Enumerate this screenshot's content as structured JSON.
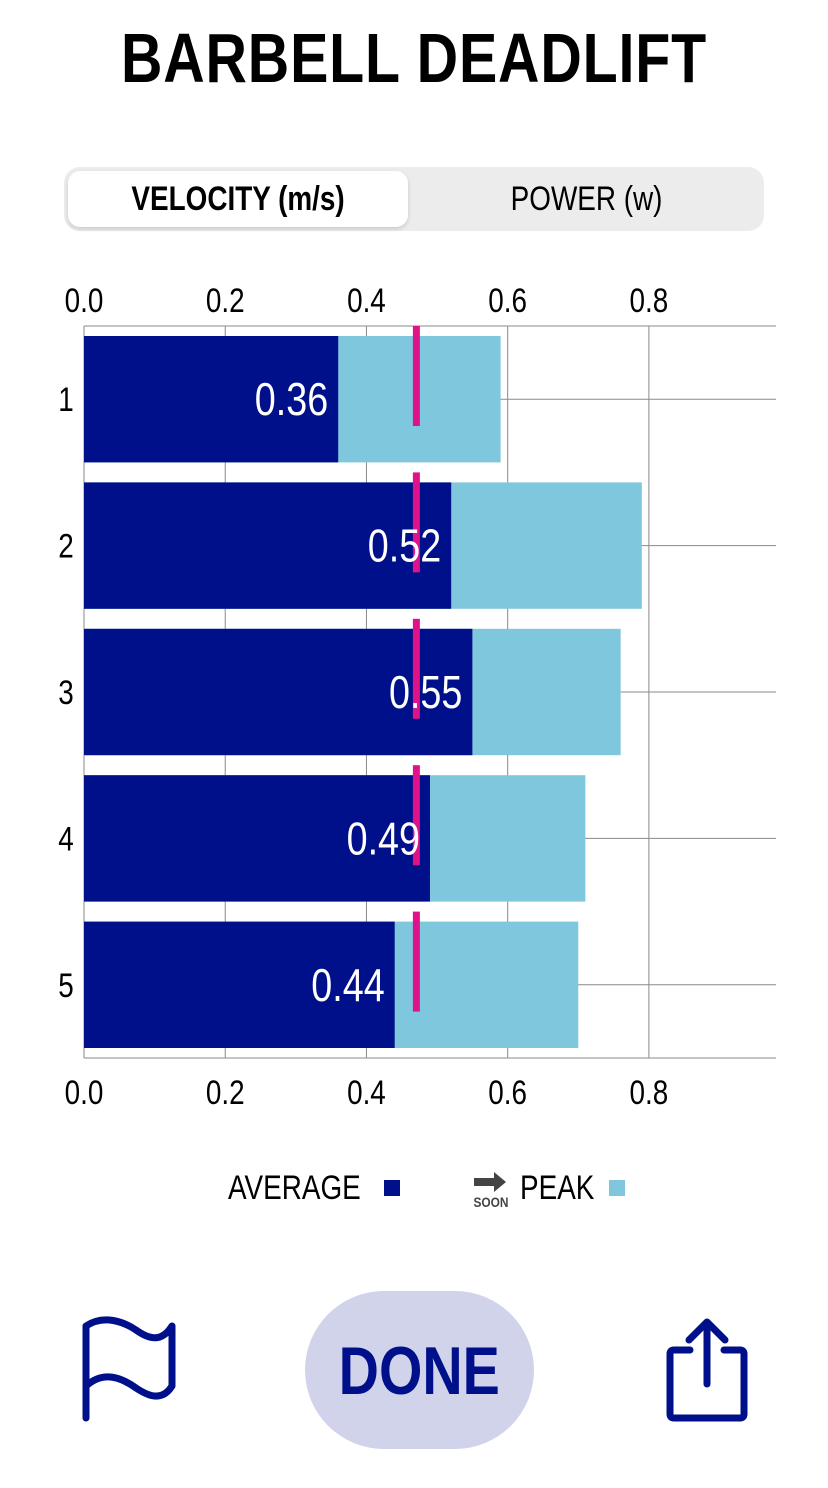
{
  "title": "BARBELL DEADLIFT",
  "tabs": {
    "velocity_label": "VELOCITY (m/s)",
    "power_label": "POWER (w)"
  },
  "colors": {
    "average": "#00108a",
    "peak": "#7fc7dd",
    "target_marker": "#e0128a",
    "done_background": "#d0d3ea",
    "done_text": "#00108a",
    "icon": "#00108a"
  },
  "chart_data": {
    "type": "bar",
    "orientation": "horizontal",
    "stacked_overlay": true,
    "categories": [
      "1",
      "2",
      "3",
      "4",
      "5"
    ],
    "series": [
      {
        "name": "AVERAGE",
        "values": [
          0.36,
          0.52,
          0.55,
          0.49,
          0.44
        ]
      },
      {
        "name": "PEAK",
        "values": [
          0.59,
          0.79,
          0.76,
          0.71,
          0.7
        ]
      }
    ],
    "data_labels": [
      "0.36",
      "0.52",
      "0.55",
      "0.49",
      "0.44"
    ],
    "target_value": 0.47,
    "xlim": [
      0.0,
      0.98
    ],
    "xticks": [
      "0.0",
      "0.2",
      "0.4",
      "0.6",
      "0.8"
    ],
    "xtick_values": [
      0.0,
      0.2,
      0.4,
      0.6,
      0.8
    ],
    "axis_top_and_bottom": true,
    "grid": true,
    "legend_placement": "bottom"
  },
  "legend": {
    "average_label": "AVERAGE",
    "peak_label": "PEAK",
    "soon_label": "SOON"
  },
  "buttons": {
    "done_label": "DONE",
    "flag_icon": "flag-icon",
    "share_icon": "share-icon"
  }
}
